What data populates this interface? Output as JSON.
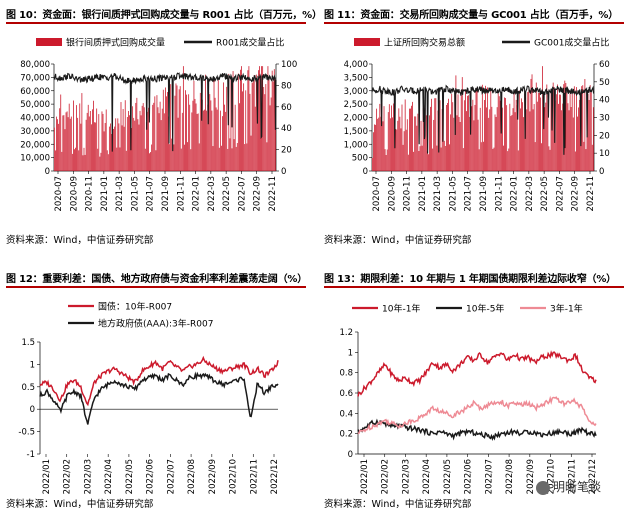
{
  "panels": [
    {
      "title": "图 10：资金面：银行间质押式回购成交量与 R001 占比（百万元，%）",
      "source": "资料来源：Wind，中信证券研究部",
      "chart_data": {
        "type": "bar+line",
        "legend": [
          "银行间质押式回购成交量",
          "R001成交量占比"
        ],
        "x_ticks": [
          "2020-07",
          "2020-09",
          "2020-11",
          "2021-01",
          "2021-03",
          "2021-05",
          "2021-07",
          "2021-09",
          "2021-11",
          "2022-01",
          "2022-03",
          "2022-05",
          "2022-07",
          "2022-09",
          "2022-11"
        ],
        "y_left": {
          "min": 0,
          "max": 80000,
          "ticks": [
            "0",
            "10,000",
            "20,000",
            "30,000",
            "40,000",
            "50,000",
            "60,000",
            "70,000",
            "80,000"
          ]
        },
        "y_right": {
          "min": 0,
          "max": 100,
          "ticks": [
            "0",
            "20",
            "40",
            "60",
            "80",
            "100"
          ]
        },
        "bars_monthly_avg": [
          40000,
          42000,
          44000,
          43000,
          42000,
          45000,
          41000,
          38000,
          36000,
          43000,
          44000,
          45000,
          46000,
          47000,
          50000,
          53000,
          55000,
          54000,
          56000,
          58000,
          60000,
          60000,
          57000,
          54000,
          61000,
          65000,
          70000,
          67000,
          62000,
          63000,
          65000
        ],
        "line_monthly_avg": [
          88,
          87,
          89,
          86,
          85,
          86,
          88,
          87,
          89,
          86,
          84,
          85,
          86,
          87,
          86,
          88,
          87,
          89,
          88,
          87,
          88,
          86,
          87,
          89,
          86,
          88,
          87,
          86,
          88,
          87,
          86
        ]
      }
    },
    {
      "title": "图 11：资金面：交易所回购成交量与 GC001 占比（百万手，%）",
      "source": "资料来源：Wind，中信证券研究部",
      "chart_data": {
        "type": "bar+line",
        "legend": [
          "上证所回购交易总额",
          "GC001成交量占比"
        ],
        "x_ticks": [
          "2020-07",
          "2020-09",
          "2020-11",
          "2021-01",
          "2021-03",
          "2021-05",
          "2021-07",
          "2021-09",
          "2021-11",
          "2022-01",
          "2022-03",
          "2022-05",
          "2022-07",
          "2022-09",
          "2022-11"
        ],
        "y_left": {
          "min": 0,
          "max": 4000,
          "ticks": [
            "0",
            "500",
            "1,000",
            "1,500",
            "2,000",
            "2,500",
            "3,000",
            "3,500",
            "4,000"
          ]
        },
        "y_right": {
          "min": 0,
          "max": 60,
          "ticks": [
            "0",
            "10",
            "20",
            "30",
            "40",
            "50",
            "60"
          ]
        },
        "bars_monthly_avg": [
          1900,
          2000,
          2100,
          2050,
          2000,
          2150,
          2200,
          2250,
          2300,
          2350,
          2400,
          2450,
          2500,
          2550,
          2600,
          2650,
          2700,
          2650,
          2700,
          2750,
          2700,
          2750,
          2800,
          2750,
          2800,
          2850,
          2800,
          2750,
          2800,
          2850,
          2800
        ],
        "line_monthly_avg": [
          45,
          46,
          45,
          44,
          46,
          45,
          45,
          46,
          44,
          45,
          46,
          45,
          44,
          45,
          46,
          45,
          45,
          44,
          46,
          45,
          45,
          46,
          45,
          44,
          45,
          46,
          45,
          45,
          44,
          45,
          46
        ]
      }
    },
    {
      "title": "图 12：重要利差：国债、地方政府债与资金利率利差震荡走阔（%）",
      "source": "资料来源：Wind，中信证券研究部",
      "chart_data": {
        "type": "line",
        "legend": [
          "国债：10年-R007",
          "地方政府债(AAA):3年-R007"
        ],
        "x_ticks": [
          "2022/01",
          "2022/02",
          "2022/03",
          "2022/04",
          "2022/05",
          "2022/06",
          "2022/07",
          "2022/08",
          "2022/09",
          "2022/10",
          "2022/11",
          "2022/12"
        ],
        "y": {
          "min": -1,
          "max": 1.5,
          "ticks": [
            "-1",
            "-0.5",
            "0",
            "0.5",
            "1",
            "1.5"
          ]
        },
        "series": [
          {
            "name": "国债：10年-R007",
            "color": "#cc1a2c",
            "values": [
              0.55,
              0.6,
              0.45,
              0.2,
              0.55,
              0.65,
              0.5,
              0.1,
              0.6,
              0.75,
              0.85,
              0.9,
              0.8,
              0.7,
              0.6,
              0.85,
              0.95,
              1.05,
              0.9,
              1.05,
              0.95,
              0.85,
              0.95,
              1.0,
              1.1,
              1.0,
              0.9,
              0.85,
              0.9,
              0.95,
              1.0,
              0.8,
              0.9,
              0.75,
              0.85,
              1.05
            ]
          },
          {
            "name": "地方政府债(AAA):3年-R007",
            "color": "#1a1a1a",
            "values": [
              0.3,
              0.4,
              0.2,
              -0.05,
              0.3,
              0.4,
              0.3,
              -0.35,
              0.25,
              0.45,
              0.55,
              0.65,
              0.55,
              0.5,
              0.45,
              0.65,
              0.7,
              0.75,
              0.65,
              0.75,
              0.65,
              0.55,
              0.7,
              0.75,
              0.75,
              0.7,
              0.6,
              0.55,
              0.6,
              0.65,
              0.7,
              -0.25,
              0.6,
              0.35,
              0.5,
              0.55
            ]
          }
        ]
      }
    },
    {
      "title": "图 13：期限利差：10 年期与 1 年期国债期限利差边际收窄（%）",
      "source": "资料来源：Wind，中信证券研究部",
      "chart_data": {
        "type": "line",
        "legend": [
          "10年-1年",
          "10年-5年",
          "3年-1年"
        ],
        "x_ticks": [
          "2022/01",
          "2022/02",
          "2022/03",
          "2022/04",
          "2022/05",
          "2022/06",
          "2022/07",
          "2022/08",
          "2022/09",
          "2022/10",
          "2022/11",
          "2022/12"
        ],
        "y": {
          "min": 0,
          "max": 1.2,
          "ticks": [
            "0",
            "0.2",
            "0.4",
            "0.6",
            "0.8",
            "1",
            "1.2"
          ]
        },
        "series": [
          {
            "name": "10年-1年",
            "color": "#cc1a2c",
            "values": [
              0.58,
              0.65,
              0.72,
              0.8,
              0.88,
              0.78,
              0.72,
              0.75,
              0.7,
              0.72,
              0.8,
              0.9,
              0.85,
              0.88,
              0.82,
              0.88,
              0.95,
              0.92,
              0.98,
              0.9,
              0.95,
              1.0,
              0.92,
              0.98,
              0.93,
              0.95,
              0.9,
              0.95,
              0.97,
              0.98,
              0.95,
              0.92,
              0.97,
              0.82,
              0.75,
              0.72
            ]
          },
          {
            "name": "10年-5年",
            "color": "#1a1a1a",
            "values": [
              0.22,
              0.26,
              0.3,
              0.32,
              0.3,
              0.27,
              0.28,
              0.26,
              0.25,
              0.24,
              0.22,
              0.2,
              0.22,
              0.2,
              0.18,
              0.2,
              0.22,
              0.21,
              0.19,
              0.18,
              0.17,
              0.2,
              0.21,
              0.22,
              0.2,
              0.22,
              0.21,
              0.19,
              0.2,
              0.21,
              0.22,
              0.2,
              0.21,
              0.24,
              0.2,
              0.19
            ]
          },
          {
            "name": "3年-1年",
            "color": "#ee8a94",
            "values": [
              0.2,
              0.24,
              0.27,
              0.3,
              0.33,
              0.3,
              0.28,
              0.3,
              0.33,
              0.35,
              0.4,
              0.45,
              0.42,
              0.4,
              0.38,
              0.42,
              0.45,
              0.5,
              0.45,
              0.48,
              0.5,
              0.52,
              0.47,
              0.5,
              0.48,
              0.5,
              0.45,
              0.48,
              0.52,
              0.55,
              0.5,
              0.5,
              0.52,
              0.45,
              0.32,
              0.3
            ]
          }
        ]
      }
    }
  ],
  "watermark": {
    "text": "明晰笔谈"
  }
}
